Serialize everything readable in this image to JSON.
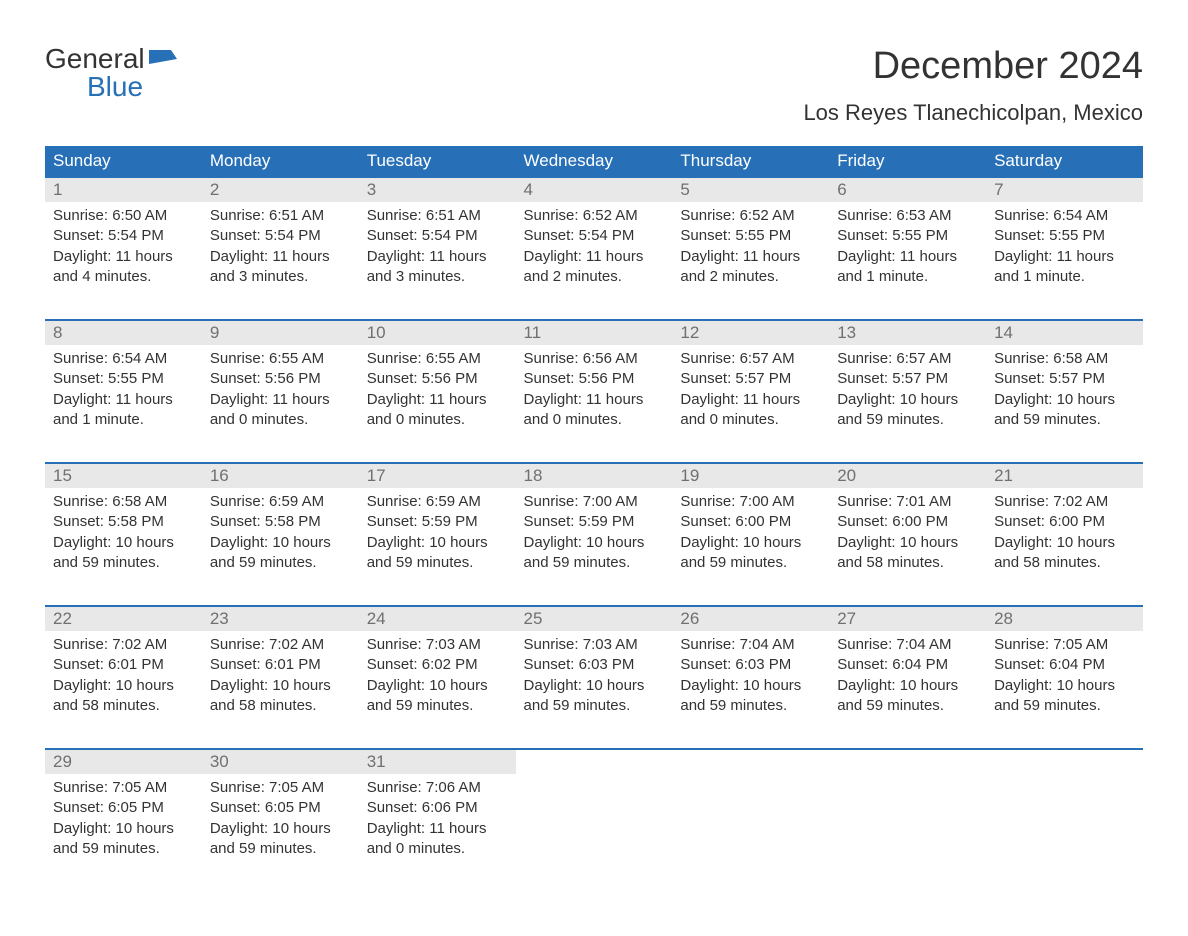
{
  "logo": {
    "top_text": "General",
    "bottom_text": "Blue",
    "top_color": "#333333",
    "bottom_color": "#2770b8",
    "flag_color": "#2770b8"
  },
  "title": "December 2024",
  "location": "Los Reyes Tlanechicolpan, Mexico",
  "colors": {
    "header_bg": "#2770b8",
    "header_text": "#ffffff",
    "day_number_bg": "#e8e8e8",
    "day_number_text": "#707070",
    "body_text": "#333333",
    "row_border": "#2770b8",
    "background": "#ffffff"
  },
  "weekdays": [
    "Sunday",
    "Monday",
    "Tuesday",
    "Wednesday",
    "Thursday",
    "Friday",
    "Saturday"
  ],
  "days": [
    {
      "num": "1",
      "sunrise": "Sunrise: 6:50 AM",
      "sunset": "Sunset: 5:54 PM",
      "daylight1": "Daylight: 11 hours",
      "daylight2": "and 4 minutes."
    },
    {
      "num": "2",
      "sunrise": "Sunrise: 6:51 AM",
      "sunset": "Sunset: 5:54 PM",
      "daylight1": "Daylight: 11 hours",
      "daylight2": "and 3 minutes."
    },
    {
      "num": "3",
      "sunrise": "Sunrise: 6:51 AM",
      "sunset": "Sunset: 5:54 PM",
      "daylight1": "Daylight: 11 hours",
      "daylight2": "and 3 minutes."
    },
    {
      "num": "4",
      "sunrise": "Sunrise: 6:52 AM",
      "sunset": "Sunset: 5:54 PM",
      "daylight1": "Daylight: 11 hours",
      "daylight2": "and 2 minutes."
    },
    {
      "num": "5",
      "sunrise": "Sunrise: 6:52 AM",
      "sunset": "Sunset: 5:55 PM",
      "daylight1": "Daylight: 11 hours",
      "daylight2": "and 2 minutes."
    },
    {
      "num": "6",
      "sunrise": "Sunrise: 6:53 AM",
      "sunset": "Sunset: 5:55 PM",
      "daylight1": "Daylight: 11 hours",
      "daylight2": "and 1 minute."
    },
    {
      "num": "7",
      "sunrise": "Sunrise: 6:54 AM",
      "sunset": "Sunset: 5:55 PM",
      "daylight1": "Daylight: 11 hours",
      "daylight2": "and 1 minute."
    },
    {
      "num": "8",
      "sunrise": "Sunrise: 6:54 AM",
      "sunset": "Sunset: 5:55 PM",
      "daylight1": "Daylight: 11 hours",
      "daylight2": "and 1 minute."
    },
    {
      "num": "9",
      "sunrise": "Sunrise: 6:55 AM",
      "sunset": "Sunset: 5:56 PM",
      "daylight1": "Daylight: 11 hours",
      "daylight2": "and 0 minutes."
    },
    {
      "num": "10",
      "sunrise": "Sunrise: 6:55 AM",
      "sunset": "Sunset: 5:56 PM",
      "daylight1": "Daylight: 11 hours",
      "daylight2": "and 0 minutes."
    },
    {
      "num": "11",
      "sunrise": "Sunrise: 6:56 AM",
      "sunset": "Sunset: 5:56 PM",
      "daylight1": "Daylight: 11 hours",
      "daylight2": "and 0 minutes."
    },
    {
      "num": "12",
      "sunrise": "Sunrise: 6:57 AM",
      "sunset": "Sunset: 5:57 PM",
      "daylight1": "Daylight: 11 hours",
      "daylight2": "and 0 minutes."
    },
    {
      "num": "13",
      "sunrise": "Sunrise: 6:57 AM",
      "sunset": "Sunset: 5:57 PM",
      "daylight1": "Daylight: 10 hours",
      "daylight2": "and 59 minutes."
    },
    {
      "num": "14",
      "sunrise": "Sunrise: 6:58 AM",
      "sunset": "Sunset: 5:57 PM",
      "daylight1": "Daylight: 10 hours",
      "daylight2": "and 59 minutes."
    },
    {
      "num": "15",
      "sunrise": "Sunrise: 6:58 AM",
      "sunset": "Sunset: 5:58 PM",
      "daylight1": "Daylight: 10 hours",
      "daylight2": "and 59 minutes."
    },
    {
      "num": "16",
      "sunrise": "Sunrise: 6:59 AM",
      "sunset": "Sunset: 5:58 PM",
      "daylight1": "Daylight: 10 hours",
      "daylight2": "and 59 minutes."
    },
    {
      "num": "17",
      "sunrise": "Sunrise: 6:59 AM",
      "sunset": "Sunset: 5:59 PM",
      "daylight1": "Daylight: 10 hours",
      "daylight2": "and 59 minutes."
    },
    {
      "num": "18",
      "sunrise": "Sunrise: 7:00 AM",
      "sunset": "Sunset: 5:59 PM",
      "daylight1": "Daylight: 10 hours",
      "daylight2": "and 59 minutes."
    },
    {
      "num": "19",
      "sunrise": "Sunrise: 7:00 AM",
      "sunset": "Sunset: 6:00 PM",
      "daylight1": "Daylight: 10 hours",
      "daylight2": "and 59 minutes."
    },
    {
      "num": "20",
      "sunrise": "Sunrise: 7:01 AM",
      "sunset": "Sunset: 6:00 PM",
      "daylight1": "Daylight: 10 hours",
      "daylight2": "and 58 minutes."
    },
    {
      "num": "21",
      "sunrise": "Sunrise: 7:02 AM",
      "sunset": "Sunset: 6:00 PM",
      "daylight1": "Daylight: 10 hours",
      "daylight2": "and 58 minutes."
    },
    {
      "num": "22",
      "sunrise": "Sunrise: 7:02 AM",
      "sunset": "Sunset: 6:01 PM",
      "daylight1": "Daylight: 10 hours",
      "daylight2": "and 58 minutes."
    },
    {
      "num": "23",
      "sunrise": "Sunrise: 7:02 AM",
      "sunset": "Sunset: 6:01 PM",
      "daylight1": "Daylight: 10 hours",
      "daylight2": "and 58 minutes."
    },
    {
      "num": "24",
      "sunrise": "Sunrise: 7:03 AM",
      "sunset": "Sunset: 6:02 PM",
      "daylight1": "Daylight: 10 hours",
      "daylight2": "and 59 minutes."
    },
    {
      "num": "25",
      "sunrise": "Sunrise: 7:03 AM",
      "sunset": "Sunset: 6:03 PM",
      "daylight1": "Daylight: 10 hours",
      "daylight2": "and 59 minutes."
    },
    {
      "num": "26",
      "sunrise": "Sunrise: 7:04 AM",
      "sunset": "Sunset: 6:03 PM",
      "daylight1": "Daylight: 10 hours",
      "daylight2": "and 59 minutes."
    },
    {
      "num": "27",
      "sunrise": "Sunrise: 7:04 AM",
      "sunset": "Sunset: 6:04 PM",
      "daylight1": "Daylight: 10 hours",
      "daylight2": "and 59 minutes."
    },
    {
      "num": "28",
      "sunrise": "Sunrise: 7:05 AM",
      "sunset": "Sunset: 6:04 PM",
      "daylight1": "Daylight: 10 hours",
      "daylight2": "and 59 minutes."
    },
    {
      "num": "29",
      "sunrise": "Sunrise: 7:05 AM",
      "sunset": "Sunset: 6:05 PM",
      "daylight1": "Daylight: 10 hours",
      "daylight2": "and 59 minutes."
    },
    {
      "num": "30",
      "sunrise": "Sunrise: 7:05 AM",
      "sunset": "Sunset: 6:05 PM",
      "daylight1": "Daylight: 10 hours",
      "daylight2": "and 59 minutes."
    },
    {
      "num": "31",
      "sunrise": "Sunrise: 7:06 AM",
      "sunset": "Sunset: 6:06 PM",
      "daylight1": "Daylight: 11 hours",
      "daylight2": "and 0 minutes."
    }
  ]
}
